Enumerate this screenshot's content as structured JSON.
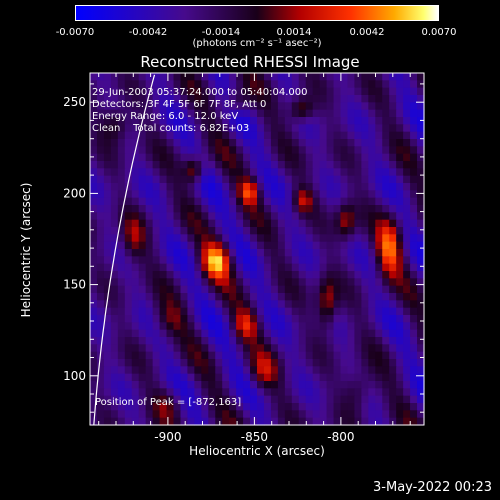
{
  "colorbar": {
    "ticks": [
      "-0.0070",
      "-0.0042",
      "-0.0014",
      "0.0014",
      "0.0042",
      "0.0070"
    ],
    "units": "(photons cm⁻² s⁻¹ asec⁻²)"
  },
  "info": {
    "time": "29-Jun-2003 05:37:24.000 to 05:40:04.000",
    "detectors": "Detectors: 3F 4F 5F 6F 7F 8F, Att 0",
    "energy": "Energy Range: 6.0 - 12.0 keV",
    "clean": "Clean    Total counts: 6.82E+03",
    "peak": "Position of Peak = [-872,163]"
  },
  "footer": {
    "date": "3-May-2022 00:23"
  },
  "colors": {
    "map_low": "#1a0a8a",
    "map_mid": "#c02000",
    "map_high": "#ffffc0",
    "limb": "#ffffff"
  },
  "chart_data": {
    "type": "heatmap",
    "title": "Reconstructed RHESSI Image",
    "xlabel": "Heliocentric X (arcsec)",
    "ylabel": "Heliocentric Y (arcsec)",
    "xlim": [
      -945,
      -752
    ],
    "ylim": [
      73,
      266
    ],
    "xticks": [
      -900,
      -850,
      -800
    ],
    "yticks": [
      100,
      150,
      200,
      250
    ],
    "xticklabels": [
      "-900",
      "-850",
      "-800"
    ],
    "yticklabels": [
      "100",
      "150",
      "200",
      "250"
    ],
    "clim": [
      -0.007,
      0.007
    ],
    "peak": {
      "x": -872,
      "y": 163,
      "value": 0.007
    },
    "sources": [
      {
        "x": -872,
        "y": 163,
        "value": 0.007,
        "sx": 6,
        "sy": 7
      },
      {
        "x": -772,
        "y": 170,
        "value": 0.006,
        "sx": 5,
        "sy": 11
      },
      {
        "x": -885,
        "y": 213,
        "value": 0.0048,
        "sx": 4,
        "sy": 5
      },
      {
        "x": -853,
        "y": 201,
        "value": 0.005,
        "sx": 4,
        "sy": 5
      },
      {
        "x": -822,
        "y": 196,
        "value": 0.0042,
        "sx": 4,
        "sy": 5
      },
      {
        "x": -823,
        "y": 246,
        "value": 0.0046,
        "sx": 5,
        "sy": 5
      },
      {
        "x": -855,
        "y": 128,
        "value": 0.004,
        "sx": 5,
        "sy": 6
      },
      {
        "x": -808,
        "y": 140,
        "value": 0.0045,
        "sx": 4,
        "sy": 10
      },
      {
        "x": -797,
        "y": 185,
        "value": 0.0044,
        "sx": 4,
        "sy": 7
      },
      {
        "x": -790,
        "y": 92,
        "value": 0.003,
        "sx": 6,
        "sy": 8
      },
      {
        "x": -920,
        "y": 175,
        "value": 0.0032,
        "sx": 5,
        "sy": 9
      },
      {
        "x": -845,
        "y": 102,
        "value": 0.0032,
        "sx": 6,
        "sy": 7
      },
      {
        "x": -900,
        "y": 130,
        "value": 0.0025,
        "sx": 7,
        "sy": 7
      },
      {
        "x": -930,
        "y": 238,
        "value": 0.0034,
        "sx": 6,
        "sy": 7
      },
      {
        "x": -860,
        "y": 250,
        "value": 0.003,
        "sx": 5,
        "sy": 5
      },
      {
        "x": -900,
        "y": 85,
        "value": 0.0024,
        "sx": 6,
        "sy": 6
      }
    ]
  }
}
